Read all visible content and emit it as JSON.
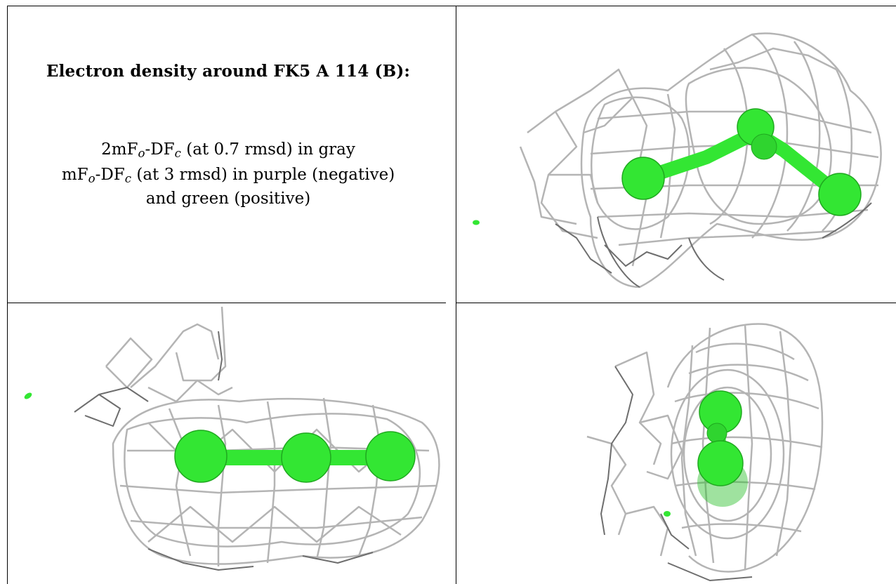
{
  "caption": {
    "title": "Electron density around FK5 A 114 (B):",
    "line1": {
      "a": "2mF",
      "a_sub": "o",
      "b": "-DF",
      "b_sub": "c",
      "rest": " (at 0.7 rmsd) in gray"
    },
    "line2": {
      "a": "mF",
      "a_sub": "o",
      "b": "-DF",
      "b_sub": "c",
      "rest": " (at 3 rmsd) in purple (negative)"
    },
    "line3": "and green (positive)"
  },
  "colors": {
    "mesh": "#b4b4b4",
    "mesh_dark": "#6e6e6e",
    "atom": "#33e633",
    "atom_dark": "#1fa81f",
    "grid_line": "#000000"
  }
}
